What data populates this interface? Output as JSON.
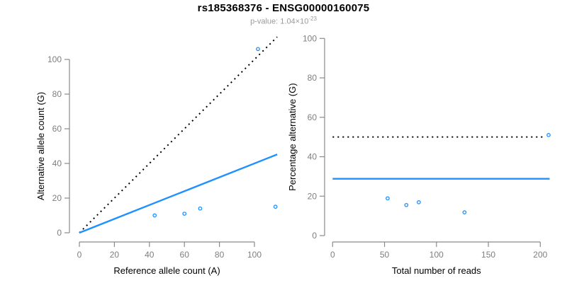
{
  "header": {
    "title": "rs185368376 - ENSG00000160075",
    "subtitle_base": "p-value: 1.04×10",
    "subtitle_exponent": "-23"
  },
  "colors": {
    "accent_blue": "#1E90FF",
    "line_black": "#000000",
    "axis_gray": "#8a8a8a",
    "tick_label_gray": "#7e7e7e",
    "axis_title_black": "#000000",
    "subtitle_gray": "#9a9a9a",
    "background": "#ffffff"
  },
  "chart_data": [
    {
      "type": "scatter",
      "title": "rs185368376 - ENSG00000160075",
      "subtitle": "p-value: 1.04×10-23",
      "xlabel": "Reference allele count (A)",
      "ylabel": "Alternative allele count (G)",
      "x_ticks": [
        0,
        20,
        40,
        60,
        80,
        100
      ],
      "y_ticks": [
        0,
        20,
        40,
        60,
        80,
        100
      ],
      "xlim": [
        0,
        113
      ],
      "ylim": [
        0,
        111
      ],
      "grid": false,
      "legend": false,
      "point_style": "open-circle",
      "points": [
        [
          43,
          10
        ],
        [
          60,
          11
        ],
        [
          69,
          14
        ],
        [
          102,
          106
        ],
        [
          112,
          15
        ]
      ],
      "lines": [
        {
          "name": "identity-line",
          "slope": 1,
          "intercept": 0,
          "x_range": [
            0,
            113
          ],
          "style": "dotted",
          "color": "#000000",
          "width": 2
        },
        {
          "name": "fit-line",
          "slope": 0.4,
          "intercept": 0,
          "x_range": [
            0,
            113
          ],
          "style": "solid",
          "color": "#1E90FF",
          "width": 2.4
        }
      ]
    },
    {
      "type": "scatter",
      "xlabel": "Total number of reads",
      "ylabel": "Percentage alternative (G)",
      "x_ticks": [
        0,
        50,
        100,
        150,
        200
      ],
      "y_ticks": [
        0,
        20,
        40,
        60,
        80,
        100
      ],
      "xlim": [
        0,
        210
      ],
      "ylim": [
        0,
        100
      ],
      "grid": false,
      "legend": false,
      "point_style": "open-circle",
      "points": [
        [
          53,
          18.9
        ],
        [
          71,
          15.5
        ],
        [
          83,
          16.9
        ],
        [
          127,
          11.8
        ],
        [
          208,
          51
        ]
      ],
      "lines": [
        {
          "name": "expected-50pct-line",
          "y_value": 50,
          "x_range": [
            0,
            205
          ],
          "style": "dotted",
          "color": "#000000",
          "width": 2
        },
        {
          "name": "mean-percentage-line",
          "y_value": 28.8,
          "x_range": [
            0,
            209
          ],
          "style": "solid",
          "color": "#1E90FF",
          "width": 2.4
        }
      ]
    }
  ]
}
